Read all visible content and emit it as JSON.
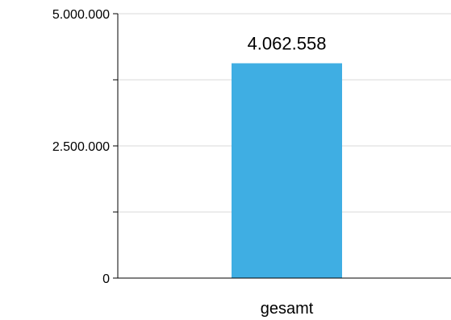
{
  "chart_data": {
    "type": "bar",
    "categories": [
      "gesamt"
    ],
    "values": [
      4062558
    ],
    "data_labels": [
      "4.062.558"
    ],
    "title": "",
    "xlabel": "",
    "ylabel": "",
    "ylim": [
      0,
      5000000
    ],
    "yticks": [
      0,
      2500000,
      5000000
    ],
    "ytick_labels": [
      "0",
      "2.500.000",
      "5.000.000"
    ],
    "grid": true,
    "legend": "none",
    "colors": {
      "bar": "#3FAEE3",
      "grid": "#D9D9D9",
      "axis": "#000000"
    }
  }
}
